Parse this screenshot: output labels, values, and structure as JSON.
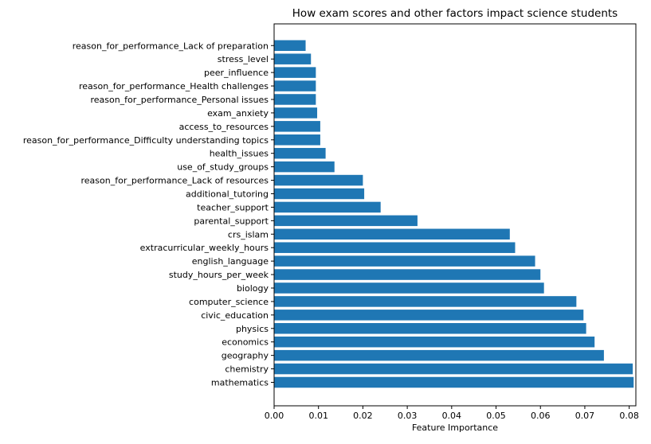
{
  "chart_data": {
    "type": "bar",
    "orientation": "horizontal",
    "title": "How exam scores and other factors impact science students",
    "xlabel": "Feature Importance",
    "ylabel": "",
    "xlim": [
      0,
      0.0815
    ],
    "xticks": [
      "0.00",
      "0.01",
      "0.02",
      "0.03",
      "0.04",
      "0.05",
      "0.06",
      "0.07",
      "0.08"
    ],
    "grid": false,
    "bar_color": "#1f77b4",
    "categories": [
      "mathematics",
      "chemistry",
      "geography",
      "economics",
      "physics",
      "civic_education",
      "computer_science",
      "biology",
      "study_hours_per_week",
      "english_language",
      "extracurricular_weekly_hours",
      "crs_islam",
      "parental_support",
      "teacher_support",
      "additional_tutoring",
      "reason_for_performance_Lack of resources",
      "use_of_study_groups",
      "health_issues",
      "reason_for_performance_Difficulty understanding topics",
      "access_to_resources",
      "exam_anxiety",
      "reason_for_performance_Personal issues",
      "reason_for_performance_Health challenges",
      "peer_influence",
      "stress_level",
      "reason_for_performance_Lack of preparation"
    ],
    "values": [
      0.081,
      0.0808,
      0.0743,
      0.0722,
      0.0703,
      0.0697,
      0.0681,
      0.0608,
      0.06,
      0.0588,
      0.0543,
      0.0531,
      0.0323,
      0.024,
      0.0203,
      0.02,
      0.0136,
      0.0116,
      0.0104,
      0.0104,
      0.0097,
      0.0094,
      0.0094,
      0.0094,
      0.0083,
      0.0071
    ]
  }
}
